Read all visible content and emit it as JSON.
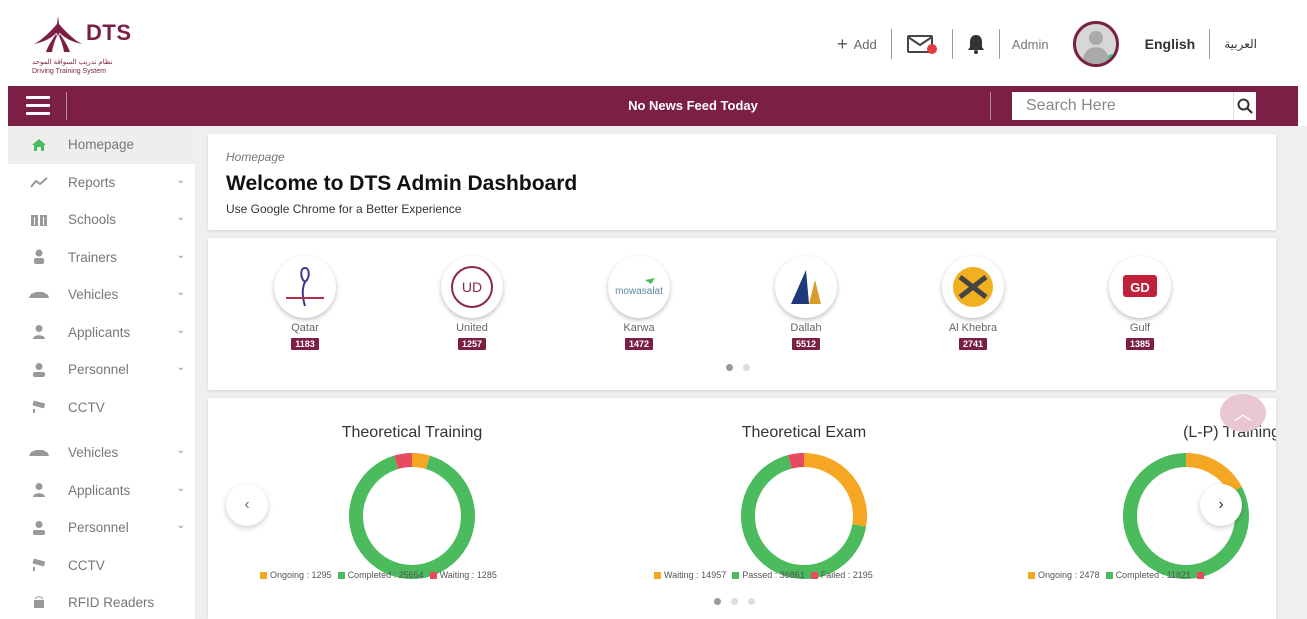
{
  "brand": {
    "name": "DTS",
    "subtitle_arabic": "نظام تدريب السواقة الموحد",
    "subtitle_english": "Driving Training System",
    "primary_color": "#7b1f45"
  },
  "header": {
    "add_label": "Add",
    "user_label": "Admin",
    "lang_label": "English",
    "lang_alt_label": "العربية"
  },
  "topbar": {
    "news_text": "No News Feed Today",
    "search_placeholder": "Search Here"
  },
  "sidebar": {
    "items": [
      {
        "label": "Homepage",
        "icon": "home-icon",
        "expandable": false,
        "active": true
      },
      {
        "label": "Reports",
        "icon": "chart-line-icon",
        "expandable": true
      },
      {
        "label": "Schools",
        "icon": "building-icon",
        "expandable": true
      },
      {
        "label": "Trainers",
        "icon": "trainer-icon",
        "expandable": true
      },
      {
        "label": "Vehicles",
        "icon": "car-icon",
        "expandable": true
      },
      {
        "label": "Applicants",
        "icon": "user-icon",
        "expandable": true
      },
      {
        "label": "Personnel",
        "icon": "personnel-icon",
        "expandable": true
      },
      {
        "label": "CCTV",
        "icon": "cctv-icon",
        "expandable": false
      },
      {
        "label": "Vehicles",
        "icon": "car-icon",
        "expandable": true
      },
      {
        "label": "Applicants",
        "icon": "user-icon",
        "expandable": true
      },
      {
        "label": "Personnel",
        "icon": "personnel-icon",
        "expandable": true
      },
      {
        "label": "CCTV",
        "icon": "cctv-icon",
        "expandable": false
      },
      {
        "label": "RFID Readers",
        "icon": "rfid-icon",
        "expandable": false
      }
    ]
  },
  "welcome": {
    "breadcrumb": "Homepage",
    "title": "Welcome to DTS Admin Dashboard",
    "subtitle": "Use Google Chrome for a Better Experience"
  },
  "schools": [
    {
      "name": "Qatar",
      "count": "1183"
    },
    {
      "name": "United",
      "count": "1257"
    },
    {
      "name": "Karwa",
      "count": "1472"
    },
    {
      "name": "Dallah",
      "count": "5512"
    },
    {
      "name": "Al Khebra",
      "count": "2741"
    },
    {
      "name": "Gulf",
      "count": "1385"
    }
  ],
  "charts": {
    "theoretical_training": {
      "title": "Theoretical Training",
      "legend": [
        {
          "label": "Ongoing : 1295",
          "color": "#f5a623"
        },
        {
          "label": "Completed : 25654",
          "color": "#4cbb5e"
        },
        {
          "label": "Waiting : 1285",
          "color": "#e84a5f"
        }
      ]
    },
    "theoretical_exam": {
      "title": "Theoretical Exam",
      "legend": [
        {
          "label": "Waiting : 14957",
          "color": "#f5a623"
        },
        {
          "label": "Passed : 36861",
          "color": "#4cbb5e"
        },
        {
          "label": "Failed : 2195",
          "color": "#e84a5f"
        }
      ]
    },
    "lp_training": {
      "title": "(L-P) Training",
      "legend": [
        {
          "label": "Ongoing : 2478",
          "color": "#f5a623"
        },
        {
          "label": "Completed : 11821",
          "color": "#4cbb5e"
        },
        {
          "label": "",
          "color": "#e84a5f"
        }
      ]
    }
  },
  "chart_data": [
    {
      "type": "pie",
      "title": "Theoretical Training",
      "categories": [
        "Ongoing",
        "Completed",
        "Waiting"
      ],
      "values": [
        1295,
        25654,
        1285
      ]
    },
    {
      "type": "pie",
      "title": "Theoretical Exam",
      "categories": [
        "Waiting",
        "Passed",
        "Failed"
      ],
      "values": [
        14957,
        36861,
        2195
      ]
    },
    {
      "type": "pie",
      "title": "(L-P) Training",
      "categories": [
        "Ongoing",
        "Completed"
      ],
      "values": [
        2478,
        11821
      ]
    }
  ]
}
